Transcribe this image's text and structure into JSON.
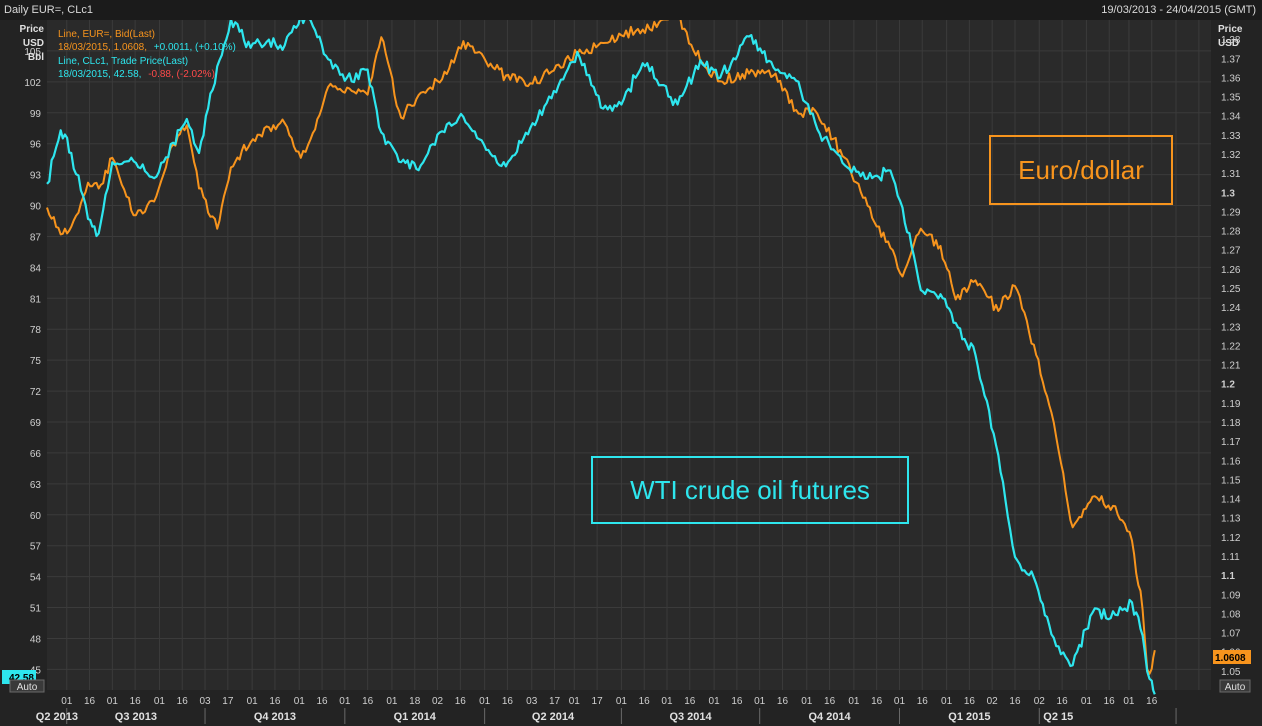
{
  "header": {
    "title": "Daily EUR=, CLc1",
    "date_range": "19/03/2013 - 24/04/2015 (GMT)"
  },
  "left_axis": {
    "title_lines": [
      "Price",
      "USD",
      "Bbl"
    ],
    "auto_label": "Auto",
    "last_value": "42.58"
  },
  "right_axis": {
    "title_lines": [
      "Price",
      "USD"
    ],
    "auto_label": "Auto",
    "last_value": "1.0608"
  },
  "legend": {
    "eur_line": "Line, EUR=, Bid(Last)",
    "eur_values": "18/03/2015, 1.0608,",
    "eur_change": "+0.0011, (+0.10%)",
    "oil_line": "Line, CLc1, Trade Price(Last)",
    "oil_values": "18/03/2015, 42.58,",
    "oil_change": "-0.88, (-2.02%)"
  },
  "annotations": {
    "euro": "Euro/dollar",
    "wti": "WTI crude oil futures"
  },
  "colors": {
    "background": "#232323",
    "grid": "#3b3b3b",
    "eur": "#f7941d",
    "oil": "#2ee6ee",
    "negative": "#ff4a4a",
    "text": "#cfcfcf"
  },
  "chart_data": {
    "type": "line",
    "title": "Daily EUR=, CLc1",
    "x_range": [
      "2013-03-19",
      "2015-04-24"
    ],
    "left_ylim": [
      43,
      108
    ],
    "right_ylim": [
      1.04,
      1.39
    ],
    "left_ticks": [
      "45",
      "48",
      "51",
      "54",
      "57",
      "60",
      "63",
      "66",
      "69",
      "72",
      "75",
      "78",
      "81",
      "84",
      "87",
      "90",
      "93",
      "96",
      "99",
      "102",
      "105"
    ],
    "right_ticks": [
      "1.05",
      "1.06",
      "1.07",
      "1.08",
      "1.09",
      "1.1",
      "1.11",
      "1.12",
      "1.13",
      "1.14",
      "1.15",
      "1.16",
      "1.17",
      "1.18",
      "1.19",
      "1.2",
      "1.21",
      "1.22",
      "1.23",
      "1.24",
      "1.25",
      "1.26",
      "1.27",
      "1.28",
      "1.29",
      "1.3",
      "1.31",
      "1.32",
      "1.33",
      "1.34",
      "1.35",
      "1.36",
      "1.37",
      "1.38"
    ],
    "day_ticks": [
      "01",
      "16",
      "01",
      "16",
      "01",
      "16",
      "03",
      "17",
      "01",
      "16",
      "01",
      "16",
      "01",
      "16",
      "01",
      "18",
      "02",
      "16",
      "01",
      "16",
      "03",
      "17",
      "01",
      "17",
      "01",
      "16",
      "01",
      "16",
      "01",
      "16",
      "01",
      "16",
      "01",
      "16",
      "01",
      "16",
      "01",
      "16",
      "01",
      "16",
      "02",
      "16",
      "02",
      "16",
      "01",
      "16",
      "01",
      "16"
    ],
    "quarter_ticks": [
      "Q2 2013",
      "Q3 2013",
      "Q4 2013",
      "Q1 2014",
      "Q2 2014",
      "Q3 2014",
      "Q4 2014",
      "Q1 2015",
      "Q2 15"
    ],
    "grid": true,
    "legend_position": "top-left",
    "series": [
      {
        "name": "Line, EUR=, Bid(Last)",
        "axis": "right",
        "color": "#f7941d",
        "points": [
          [
            "2013-03-19",
            1.292
          ],
          [
            "2013-03-28",
            1.278
          ],
          [
            "2013-04-04",
            1.282
          ],
          [
            "2013-04-15",
            1.305
          ],
          [
            "2013-04-22",
            1.302
          ],
          [
            "2013-05-01",
            1.318
          ],
          [
            "2013-05-15",
            1.288
          ],
          [
            "2013-05-30",
            1.298
          ],
          [
            "2013-06-10",
            1.325
          ],
          [
            "2013-06-19",
            1.335
          ],
          [
            "2013-06-27",
            1.302
          ],
          [
            "2013-07-09",
            1.281
          ],
          [
            "2013-07-18",
            1.313
          ],
          [
            "2013-07-31",
            1.326
          ],
          [
            "2013-08-12",
            1.334
          ],
          [
            "2013-08-21",
            1.338
          ],
          [
            "2013-09-02",
            1.318
          ],
          [
            "2013-09-10",
            1.331
          ],
          [
            "2013-09-20",
            1.355
          ],
          [
            "2013-10-01",
            1.352
          ],
          [
            "2013-10-16",
            1.351
          ],
          [
            "2013-10-25",
            1.381
          ],
          [
            "2013-11-07",
            1.339
          ],
          [
            "2013-11-20",
            1.352
          ],
          [
            "2013-12-04",
            1.359
          ],
          [
            "2013-12-18",
            1.379
          ],
          [
            "2014-01-02",
            1.368
          ],
          [
            "2014-01-15",
            1.361
          ],
          [
            "2014-01-31",
            1.357
          ],
          [
            "2014-02-14",
            1.363
          ],
          [
            "2014-03-03",
            1.372
          ],
          [
            "2014-03-20",
            1.378
          ],
          [
            "2014-04-01",
            1.382
          ],
          [
            "2014-04-15",
            1.385
          ],
          [
            "2014-05-08",
            1.393
          ],
          [
            "2014-05-23",
            1.368
          ],
          [
            "2014-06-05",
            1.358
          ],
          [
            "2014-06-24",
            1.362
          ],
          [
            "2014-07-10",
            1.361
          ],
          [
            "2014-07-25",
            1.343
          ],
          [
            "2014-08-08",
            1.341
          ],
          [
            "2014-08-26",
            1.318
          ],
          [
            "2014-09-10",
            1.293
          ],
          [
            "2014-09-25",
            1.271
          ],
          [
            "2014-10-03",
            1.256
          ],
          [
            "2014-10-15",
            1.281
          ],
          [
            "2014-10-28",
            1.272
          ],
          [
            "2014-11-07",
            1.244
          ],
          [
            "2014-11-20",
            1.254
          ],
          [
            "2014-12-05",
            1.238
          ],
          [
            "2014-12-16",
            1.251
          ],
          [
            "2014-12-30",
            1.215
          ],
          [
            "2015-01-09",
            1.185
          ],
          [
            "2015-01-23",
            1.125
          ],
          [
            "2015-02-05",
            1.141
          ],
          [
            "2015-02-20",
            1.136
          ],
          [
            "2015-03-03",
            1.118
          ],
          [
            "2015-03-10",
            1.082
          ],
          [
            "2015-03-13",
            1.051
          ],
          [
            "2015-03-16",
            1.051
          ],
          [
            "2015-03-18",
            1.0608
          ]
        ]
      },
      {
        "name": "Line, CLc1, Trade Price(Last)",
        "axis": "left",
        "color": "#2ee6ee",
        "points": [
          [
            "2013-03-19",
            92.1
          ],
          [
            "2013-03-28",
            97.3
          ],
          [
            "2013-04-04",
            95.1
          ],
          [
            "2013-04-15",
            88.7
          ],
          [
            "2013-04-22",
            87.3
          ],
          [
            "2013-05-01",
            94.2
          ],
          [
            "2013-05-15",
            94.3
          ],
          [
            "2013-05-30",
            92.8
          ],
          [
            "2013-06-10",
            96.1
          ],
          [
            "2013-06-19",
            98.4
          ],
          [
            "2013-06-27",
            95.1
          ],
          [
            "2013-07-09",
            103.5
          ],
          [
            "2013-07-18",
            108.1
          ],
          [
            "2013-07-31",
            105.3
          ],
          [
            "2013-08-12",
            106.1
          ],
          [
            "2013-08-21",
            105.1
          ],
          [
            "2013-09-02",
            108.5
          ],
          [
            "2013-09-10",
            107.4
          ],
          [
            "2013-09-20",
            104.2
          ],
          [
            "2013-10-01",
            102.1
          ],
          [
            "2013-10-16",
            103.2
          ],
          [
            "2013-10-25",
            97.1
          ],
          [
            "2013-11-07",
            94.2
          ],
          [
            "2013-11-20",
            93.9
          ],
          [
            "2013-12-04",
            97.2
          ],
          [
            "2013-12-18",
            98.6
          ],
          [
            "2014-01-02",
            95.4
          ],
          [
            "2014-01-15",
            93.8
          ],
          [
            "2014-01-31",
            97.5
          ],
          [
            "2014-02-14",
            100.4
          ],
          [
            "2014-03-03",
            104.9
          ],
          [
            "2014-03-20",
            99.4
          ],
          [
            "2014-04-01",
            99.8
          ],
          [
            "2014-04-15",
            103.8
          ],
          [
            "2014-05-08",
            99.8
          ],
          [
            "2014-05-23",
            104.1
          ],
          [
            "2014-06-05",
            102.4
          ],
          [
            "2014-06-24",
            106.4
          ],
          [
            "2014-07-10",
            103.4
          ],
          [
            "2014-07-25",
            102.1
          ],
          [
            "2014-08-08",
            97.4
          ],
          [
            "2014-08-26",
            93.9
          ],
          [
            "2014-09-10",
            92.6
          ],
          [
            "2014-09-25",
            93.4
          ],
          [
            "2014-10-03",
            89.8
          ],
          [
            "2014-10-15",
            81.8
          ],
          [
            "2014-10-28",
            81.4
          ],
          [
            "2014-11-07",
            78.6
          ],
          [
            "2014-11-20",
            75.5
          ],
          [
            "2014-12-05",
            65.8
          ],
          [
            "2014-12-16",
            55.9
          ],
          [
            "2014-12-30",
            53.3
          ],
          [
            "2015-01-09",
            48.4
          ],
          [
            "2015-01-23",
            45.4
          ],
          [
            "2015-02-05",
            50.5
          ],
          [
            "2015-02-20",
            50.3
          ],
          [
            "2015-03-03",
            51.5
          ],
          [
            "2015-03-10",
            48.3
          ],
          [
            "2015-03-13",
            44.8
          ],
          [
            "2015-03-16",
            43.9
          ],
          [
            "2015-03-18",
            42.58
          ]
        ]
      }
    ]
  }
}
